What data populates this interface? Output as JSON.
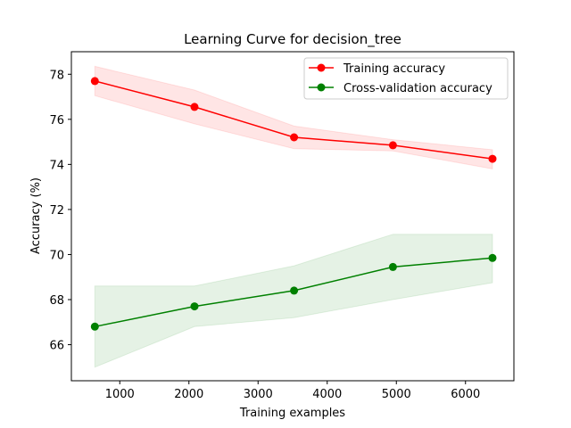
{
  "chart_data": {
    "type": "line",
    "title": "Learning Curve for decision_tree",
    "xlabel": "Training examples",
    "ylabel": "Accuracy (%)",
    "xlim": [
      300,
      6700
    ],
    "ylim": [
      64.4,
      79.0
    ],
    "x_ticks": [
      1000,
      2000,
      3000,
      4000,
      5000,
      6000
    ],
    "y_ticks": [
      66,
      68,
      70,
      72,
      74,
      76,
      78
    ],
    "grid": false,
    "legend_position": "top-right",
    "x": [
      640,
      2080,
      3520,
      4950,
      6390
    ],
    "series": [
      {
        "name": "Training accuracy",
        "color": "#ff0000",
        "values": [
          77.7,
          76.55,
          75.2,
          74.85,
          74.25
        ],
        "band_lower": [
          77.05,
          75.8,
          74.7,
          74.6,
          73.8
        ],
        "band_upper": [
          78.35,
          77.3,
          75.7,
          75.1,
          74.65
        ]
      },
      {
        "name": "Cross-validation accuracy",
        "color": "#008000",
        "values": [
          66.8,
          67.7,
          68.4,
          69.45,
          69.85
        ],
        "band_lower": [
          65.0,
          66.8,
          67.2,
          68.0,
          68.75
        ],
        "band_upper": [
          68.6,
          68.6,
          69.5,
          70.9,
          70.9
        ]
      }
    ]
  }
}
